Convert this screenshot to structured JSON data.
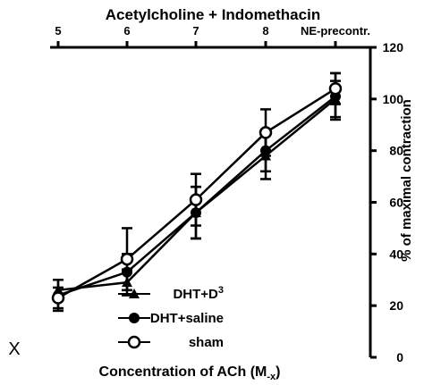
{
  "chart_data": {
    "type": "line",
    "title": "",
    "top_axis_label": "Concentration of ACh (M",
    "top_axis_label_sub": "-x",
    "top_axis_label_close": ")",
    "corner_label": "X",
    "ylabel": "% of maximal contraction",
    "bottom_label": "Acetylcholine + Indomethacin",
    "orientation": "rotated-180",
    "categories": [
      "NE-precontr.",
      "8",
      "7",
      "6",
      "5"
    ],
    "ylim": [
      0,
      120
    ],
    "yticks": [
      0,
      20,
      40,
      60,
      80,
      100,
      120
    ],
    "series": [
      {
        "name": "DHT+D",
        "name_sup": "3",
        "marker": "triangle-down",
        "values": [
          100,
          78,
          56,
          29,
          26
        ],
        "errors": [
          7,
          9,
          10,
          5,
          4
        ]
      },
      {
        "name": "DHT+saline",
        "marker": "filled-circle",
        "values": [
          101,
          80,
          56,
          33,
          24
        ],
        "errors": [
          9,
          8,
          10,
          7,
          6
        ]
      },
      {
        "name": "sham",
        "marker": "open-circle",
        "values": [
          104,
          87,
          61,
          38,
          23
        ],
        "errors": [
          6,
          9,
          10,
          12,
          4
        ]
      }
    ]
  }
}
